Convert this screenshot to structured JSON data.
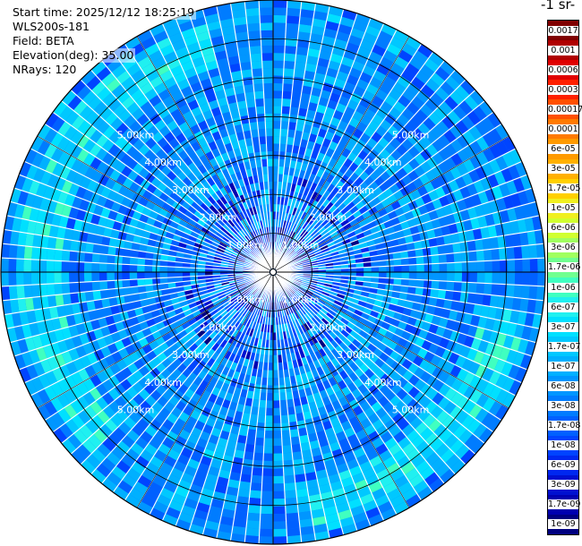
{
  "info": {
    "start_time": "Start time: 2025/12/12 18:25:19",
    "instrument": "WLS200s-181",
    "field": "Field: BETA",
    "elevation": "Elevation(deg): 35.00",
    "nrays": "NRays: 120"
  },
  "colorbar": {
    "title": "-1 sr-",
    "ticks": [
      "0.0017",
      "0.001",
      "0.0006",
      "0.0003",
      "0.00017",
      "0.0001",
      "6e-05",
      "3e-05",
      "1.7e-05",
      "1e-05",
      "6e-06",
      "3e-06",
      "1.7e-06",
      "1e-06",
      "6e-07",
      "3e-07",
      "1.7e-07",
      "1e-07",
      "6e-08",
      "3e-08",
      "1.7e-08",
      "1e-08",
      "6e-09",
      "3e-09",
      "1.7e-09",
      "1e-09"
    ],
    "colors": [
      "#800000",
      "#b00000",
      "#e00000",
      "#ff2000",
      "#ff5000",
      "#ff7a00",
      "#ff9a00",
      "#ffb000",
      "#ffd000",
      "#f0f020",
      "#d0ff30",
      "#a0ff60",
      "#70ff90",
      "#40ffc0",
      "#20f0f0",
      "#00e0ff",
      "#00c8ff",
      "#00b0ff",
      "#0096ff",
      "#007cff",
      "#0060ff",
      "#0044ff",
      "#0028f0",
      "#0010d0",
      "#0000b0",
      "#000080"
    ]
  },
  "chart_data": {
    "type": "heatmap",
    "projection": "polar PPI scan",
    "field": "BETA",
    "elevation_deg": 35.0,
    "n_rays": 120,
    "range_rings_km": [
      1.0,
      2.0,
      3.0,
      4.0,
      5.0
    ],
    "ring_labels": {
      "1": "1.00km",
      "2": "2.00km",
      "3": "3.00km",
      "4": "4.00km",
      "5": "5.00km"
    },
    "max_range_km": 7.0,
    "color_scale": "log",
    "value_range": [
      1e-09,
      0.0017
    ],
    "background_level": 5e-08,
    "enhanced_bands": [
      {
        "from_azimuth_deg": 225,
        "to_azimuth_deg": 345,
        "range_km": [
          5.4,
          6.6
        ],
        "level": 3e-07
      },
      {
        "from_azimuth_deg": 100,
        "to_azimuth_deg": 170,
        "range_km": [
          5.5,
          6.7
        ],
        "level": 3e-07
      }
    ]
  }
}
